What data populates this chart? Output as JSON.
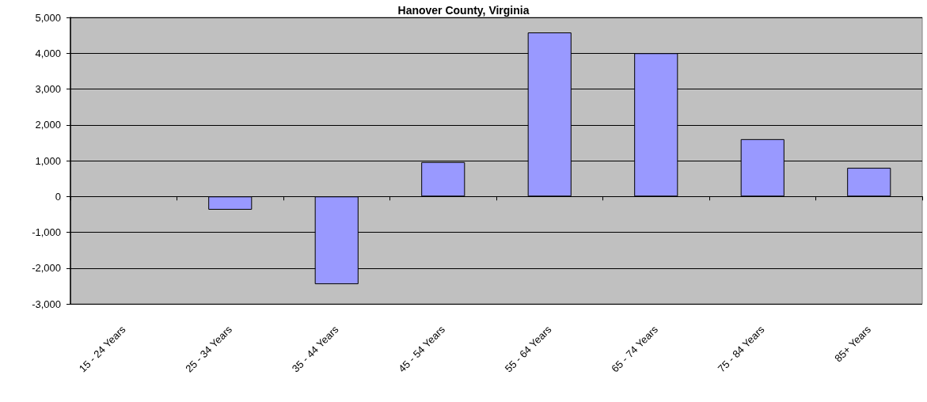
{
  "chart_data": {
    "type": "bar",
    "title": "Hanover County, Virginia",
    "categories": [
      "15 - 24 Years",
      "25 - 34 Years",
      "35 - 44 Years",
      "45 - 54 Years",
      "55 - 64 Years",
      "65 - 74 Years",
      "75 - 84 Years",
      "85+ Years"
    ],
    "values": [
      null,
      -370,
      -2450,
      960,
      4580,
      4000,
      1600,
      800
    ],
    "color": "#9999ff",
    "ylim": [
      -3000,
      5000
    ],
    "yticks": [
      {
        "value": -3000,
        "label": "-3,000"
      },
      {
        "value": -2000,
        "label": "-2,000"
      },
      {
        "value": -1000,
        "label": "-1,000"
      },
      0,
      {
        "value": 1000,
        "label": "1,000"
      },
      {
        "value": 2000,
        "label": "2,000"
      },
      {
        "value": 3000,
        "label": "3,000"
      },
      {
        "value": 4000,
        "label": "4,000"
      },
      {
        "value": 5000,
        "label": "5,000"
      }
    ],
    "grid": "y"
  }
}
